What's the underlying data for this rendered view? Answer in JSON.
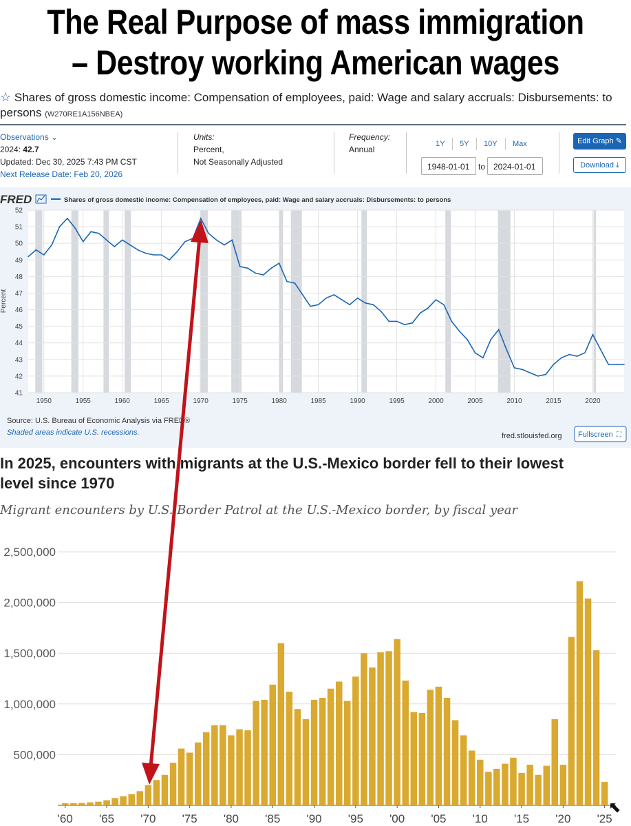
{
  "headline": {
    "line1": "The Real Purpose of mass immigration",
    "line2": "– Destroy working American wages"
  },
  "fred": {
    "star_icon": "star-outline-icon",
    "title_line1": "Shares of gross domestic income: Compensation of employees, paid: Wage and salary accruals: Disbursements: to",
    "title_line2": "persons",
    "series_id": "(W270RE1A156NBEA)",
    "observations_label": "Observations",
    "obs_year_label": "2024:",
    "obs_value": "42.7",
    "updated": "Updated: Dec 30, 2025 7:43 PM CST",
    "next_release": "Next Release Date: Feb 20, 2026",
    "units_label": "Units:",
    "units_line1": "Percent,",
    "units_line2": "Not Seasonally Adjusted",
    "frequency_label": "Frequency:",
    "frequency_value": "Annual",
    "range_buttons": [
      "1Y",
      "5Y",
      "10Y",
      "Max"
    ],
    "start_date": "1948-01-01",
    "to_label": "to",
    "end_date": "2024-01-01",
    "edit_graph": "Edit Graph",
    "download": "Download",
    "logo": "FRED",
    "legend": "Shares of gross domestic income: Compensation of employees, paid: Wage and salary accruals: Disbursements: to persons",
    "source": "Source: U.S. Bureau of Economic Analysis via FRED®",
    "shaded_note": "Shaded areas indicate U.S. recessions.",
    "site": "fred.stlouisfed.org",
    "fullscreen": "Fullscreen",
    "colors": {
      "accent": "#1a66b5",
      "panel": "#eef3f9",
      "recession": "#d6d9de"
    }
  },
  "pew": {
    "title_line1": "In 2025, encounters with migrants at the U.S.-Mexico border fell to their lowest",
    "title_line2": "level since 1970",
    "subtitle": "Migrant encounters by U.S. Border Patrol at the U.S.-Mexico border, by fiscal year",
    "colors": {
      "bar": "#d9a930",
      "arrow": "#c0141a"
    }
  },
  "chart_data": [
    {
      "type": "line",
      "title": "",
      "xlabel": "",
      "ylabel": "Percent",
      "xlim": [
        1948,
        2024
      ],
      "ylim": [
        41,
        52
      ],
      "x_ticks": [
        "1950",
        "1955",
        "1960",
        "1965",
        "1970",
        "1975",
        "1980",
        "1985",
        "1990",
        "1995",
        "2000",
        "2005",
        "2010",
        "2015",
        "2020"
      ],
      "y_ticks": [
        "41",
        "42",
        "43",
        "44",
        "45",
        "46",
        "47",
        "48",
        "49",
        "50",
        "51",
        "52"
      ],
      "grid": true,
      "recessions": [
        [
          1948.9,
          1949.8
        ],
        [
          1953.5,
          1954.4
        ],
        [
          1957.6,
          1958.3
        ],
        [
          1960.3,
          1961.1
        ],
        [
          1969.9,
          1970.9
        ],
        [
          1973.9,
          1975.2
        ],
        [
          1980.0,
          1980.5
        ],
        [
          1981.5,
          1982.9
        ],
        [
          1990.5,
          1991.2
        ],
        [
          2001.2,
          2001.9
        ],
        [
          2007.9,
          2009.5
        ],
        [
          2020.1,
          2020.4
        ]
      ],
      "series": [
        {
          "name": "Shares of gross domestic income: Compensation of employees, paid: Wage and salary accruals: Disbursements: to persons",
          "x": [
            1948,
            1949,
            1950,
            1951,
            1952,
            1953,
            1954,
            1955,
            1956,
            1957,
            1958,
            1959,
            1960,
            1961,
            1962,
            1963,
            1964,
            1965,
            1966,
            1967,
            1968,
            1969,
            1970,
            1971,
            1972,
            1973,
            1974,
            1975,
            1976,
            1977,
            1978,
            1979,
            1980,
            1981,
            1982,
            1983,
            1984,
            1985,
            1986,
            1987,
            1988,
            1989,
            1990,
            1991,
            1992,
            1993,
            1994,
            1995,
            1996,
            1997,
            1998,
            1999,
            2000,
            2001,
            2002,
            2003,
            2004,
            2005,
            2006,
            2007,
            2008,
            2009,
            2010,
            2011,
            2012,
            2013,
            2014,
            2015,
            2016,
            2017,
            2018,
            2019,
            2020,
            2021,
            2022,
            2023,
            2024
          ],
          "y": [
            49.2,
            49.6,
            49.3,
            49.9,
            51.0,
            51.5,
            50.9,
            50.1,
            50.7,
            50.6,
            50.2,
            49.8,
            50.2,
            49.9,
            49.6,
            49.4,
            49.3,
            49.3,
            49.0,
            49.5,
            50.1,
            50.3,
            51.5,
            50.6,
            50.2,
            49.9,
            50.2,
            48.6,
            48.5,
            48.2,
            48.1,
            48.5,
            48.8,
            47.7,
            47.6,
            46.9,
            46.2,
            46.3,
            46.7,
            46.9,
            46.6,
            46.3,
            46.7,
            46.4,
            46.3,
            45.9,
            45.3,
            45.3,
            45.1,
            45.2,
            45.8,
            46.1,
            46.6,
            46.3,
            45.3,
            44.7,
            44.2,
            43.4,
            43.1,
            44.2,
            44.8,
            43.6,
            42.5,
            42.4,
            42.2,
            42.0,
            42.1,
            42.7,
            43.1,
            43.3,
            43.2,
            43.4,
            44.5,
            43.6,
            42.7,
            42.7,
            42.7
          ]
        }
      ]
    },
    {
      "type": "bar",
      "title": "In 2025, encounters with migrants at the U.S.-Mexico border fell to their lowest level since 1970",
      "subtitle": "Migrant encounters by U.S. Border Patrol at the U.S.-Mexico border, by fiscal year",
      "xlabel": "",
      "ylabel": "",
      "ylim": [
        0,
        2500000
      ],
      "y_ticks": [
        "500,000",
        "1,000,000",
        "1,500,000",
        "2,000,000",
        "2,500,000"
      ],
      "x_tick_labels": [
        "'60",
        "'65",
        "'70",
        "'75",
        "'80",
        "'85",
        "'90",
        "'95",
        "'00",
        "'05",
        "'10",
        "'15",
        "'20",
        "'25"
      ],
      "grid": true,
      "categories": [
        1960,
        1961,
        1962,
        1963,
        1964,
        1965,
        1966,
        1967,
        1968,
        1969,
        1970,
        1971,
        1972,
        1973,
        1974,
        1975,
        1976,
        1977,
        1978,
        1979,
        1980,
        1981,
        1982,
        1983,
        1984,
        1985,
        1986,
        1987,
        1988,
        1989,
        1990,
        1991,
        1992,
        1993,
        1994,
        1995,
        1996,
        1997,
        1998,
        1999,
        2000,
        2001,
        2002,
        2003,
        2004,
        2005,
        2006,
        2007,
        2008,
        2009,
        2010,
        2011,
        2012,
        2013,
        2014,
        2015,
        2016,
        2017,
        2018,
        2019,
        2020,
        2021,
        2022,
        2023,
        2024,
        2025
      ],
      "values": [
        21000,
        22000,
        24000,
        30000,
        36000,
        50000,
        72000,
        90000,
        110000,
        140000,
        200000,
        250000,
        300000,
        420000,
        560000,
        520000,
        620000,
        720000,
        790000,
        790000,
        690000,
        750000,
        740000,
        1030000,
        1040000,
        1190000,
        1600000,
        1120000,
        950000,
        850000,
        1040000,
        1060000,
        1150000,
        1220000,
        1030000,
        1270000,
        1500000,
        1360000,
        1510000,
        1520000,
        1640000,
        1230000,
        920000,
        910000,
        1140000,
        1170000,
        1060000,
        840000,
        690000,
        540000,
        450000,
        330000,
        360000,
        410000,
        470000,
        320000,
        400000,
        300000,
        390000,
        850000,
        400000,
        1660000,
        2210000,
        2040000,
        1530000,
        230000
      ]
    }
  ]
}
